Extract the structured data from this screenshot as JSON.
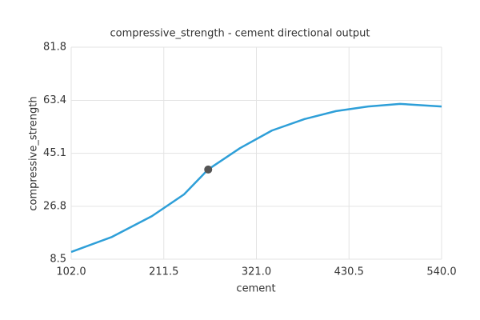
{
  "chart_data": {
    "type": "line",
    "title": "compressive_strength - cement directional output",
    "x_label": "cement",
    "y_label": "compressive_strength",
    "xlim": [
      102,
      540
    ],
    "xticks": [
      {
        "value": 102,
        "label": "102.0"
      },
      {
        "value": 211.5,
        "label": "211.5"
      },
      {
        "value": 321,
        "label": "321.0"
      },
      {
        "value": 430.5,
        "label": "430.5"
      },
      {
        "value": 540,
        "label": "540.0"
      }
    ],
    "ylim": [
      8.5,
      81.8
    ],
    "yticks": [
      8.5,
      26.8,
      45.1,
      63.4,
      81.8
    ],
    "grid": true,
    "x": [
      102,
      150.2,
      197.5,
      235.4,
      263.8,
      301.6,
      339.4,
      377.3,
      415.1,
      453,
      490.8,
      540
    ],
    "series": [
      {
        "color": "#2e9fd8",
        "values": [
          11.0,
          16.2,
          23.4,
          30.9,
          39.5,
          46.9,
          53.0,
          56.9,
          59.7,
          61.3,
          62.2,
          61.3
        ]
      }
    ],
    "marker": {
      "x": 264,
      "y": 39.5,
      "color": "#555555"
    }
  }
}
